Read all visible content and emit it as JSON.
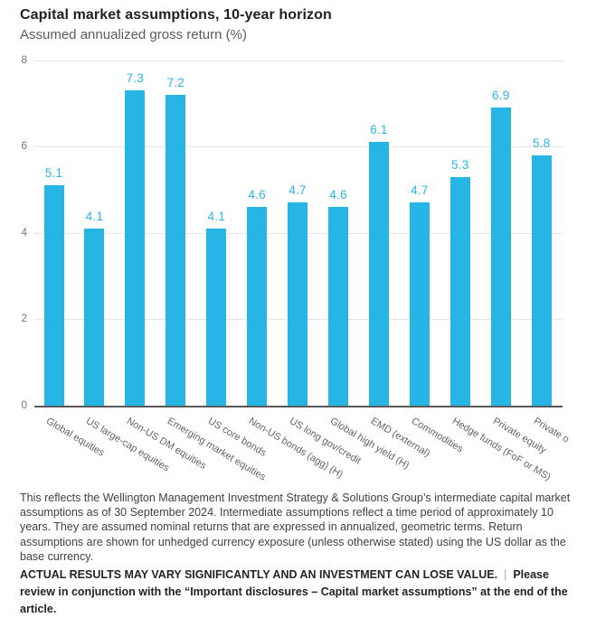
{
  "header": {
    "title": "Capital market assumptions, 10-year horizon",
    "subtitle": "Assumed annualized gross return (%)"
  },
  "chart_data": {
    "type": "bar",
    "title": "Capital market assumptions, 10-year horizon",
    "subtitle": "Assumed annualized gross return (%)",
    "xlabel": "",
    "ylabel": "Assumed annualized gross return (%)",
    "ylim": [
      0,
      8
    ],
    "yticks": [
      0,
      2,
      4,
      6,
      8
    ],
    "grid": "horizontal",
    "legend": "none",
    "bar_color": "#27b5e5",
    "value_label_color": "#29b6e8",
    "categories": [
      "Global equities",
      "US large-cap equities",
      "Non-US DM equities",
      "Emerging market equities",
      "US core bonds",
      "Non-US bonds (agg) (H)",
      "US long gov/credit",
      "Global high yield (H)",
      "EMD (external)",
      "Commodities",
      "Hedge funds (FoF or MS)",
      "Private equity",
      "Private o"
    ],
    "values": [
      5.1,
      4.1,
      7.3,
      7.2,
      4.1,
      4.6,
      4.7,
      4.6,
      6.1,
      4.7,
      5.3,
      6.9,
      5.8
    ]
  },
  "footer": {
    "disclosure": "This reflects the Wellington Management Investment Strategy & Solutions Group’s intermediate capital market assumptions as of 30 September 2024. Intermediate assumptions reflect a time period of approximately 10 years. They are assumed nominal returns that are expressed in annualized, geometric terms. Return assumptions are shown for unhedged currency exposure (unless otherwise stated) using the US dollar as the base currency.",
    "warning_bold": "ACTUAL RESULTS MAY VARY SIGNIFICANTLY AND AN INVESTMENT CAN LOSE VALUE.",
    "separator": "|",
    "review_note": "Please review in conjunction with the “Important disclosures – Capital market assumptions” at the end of the article."
  }
}
